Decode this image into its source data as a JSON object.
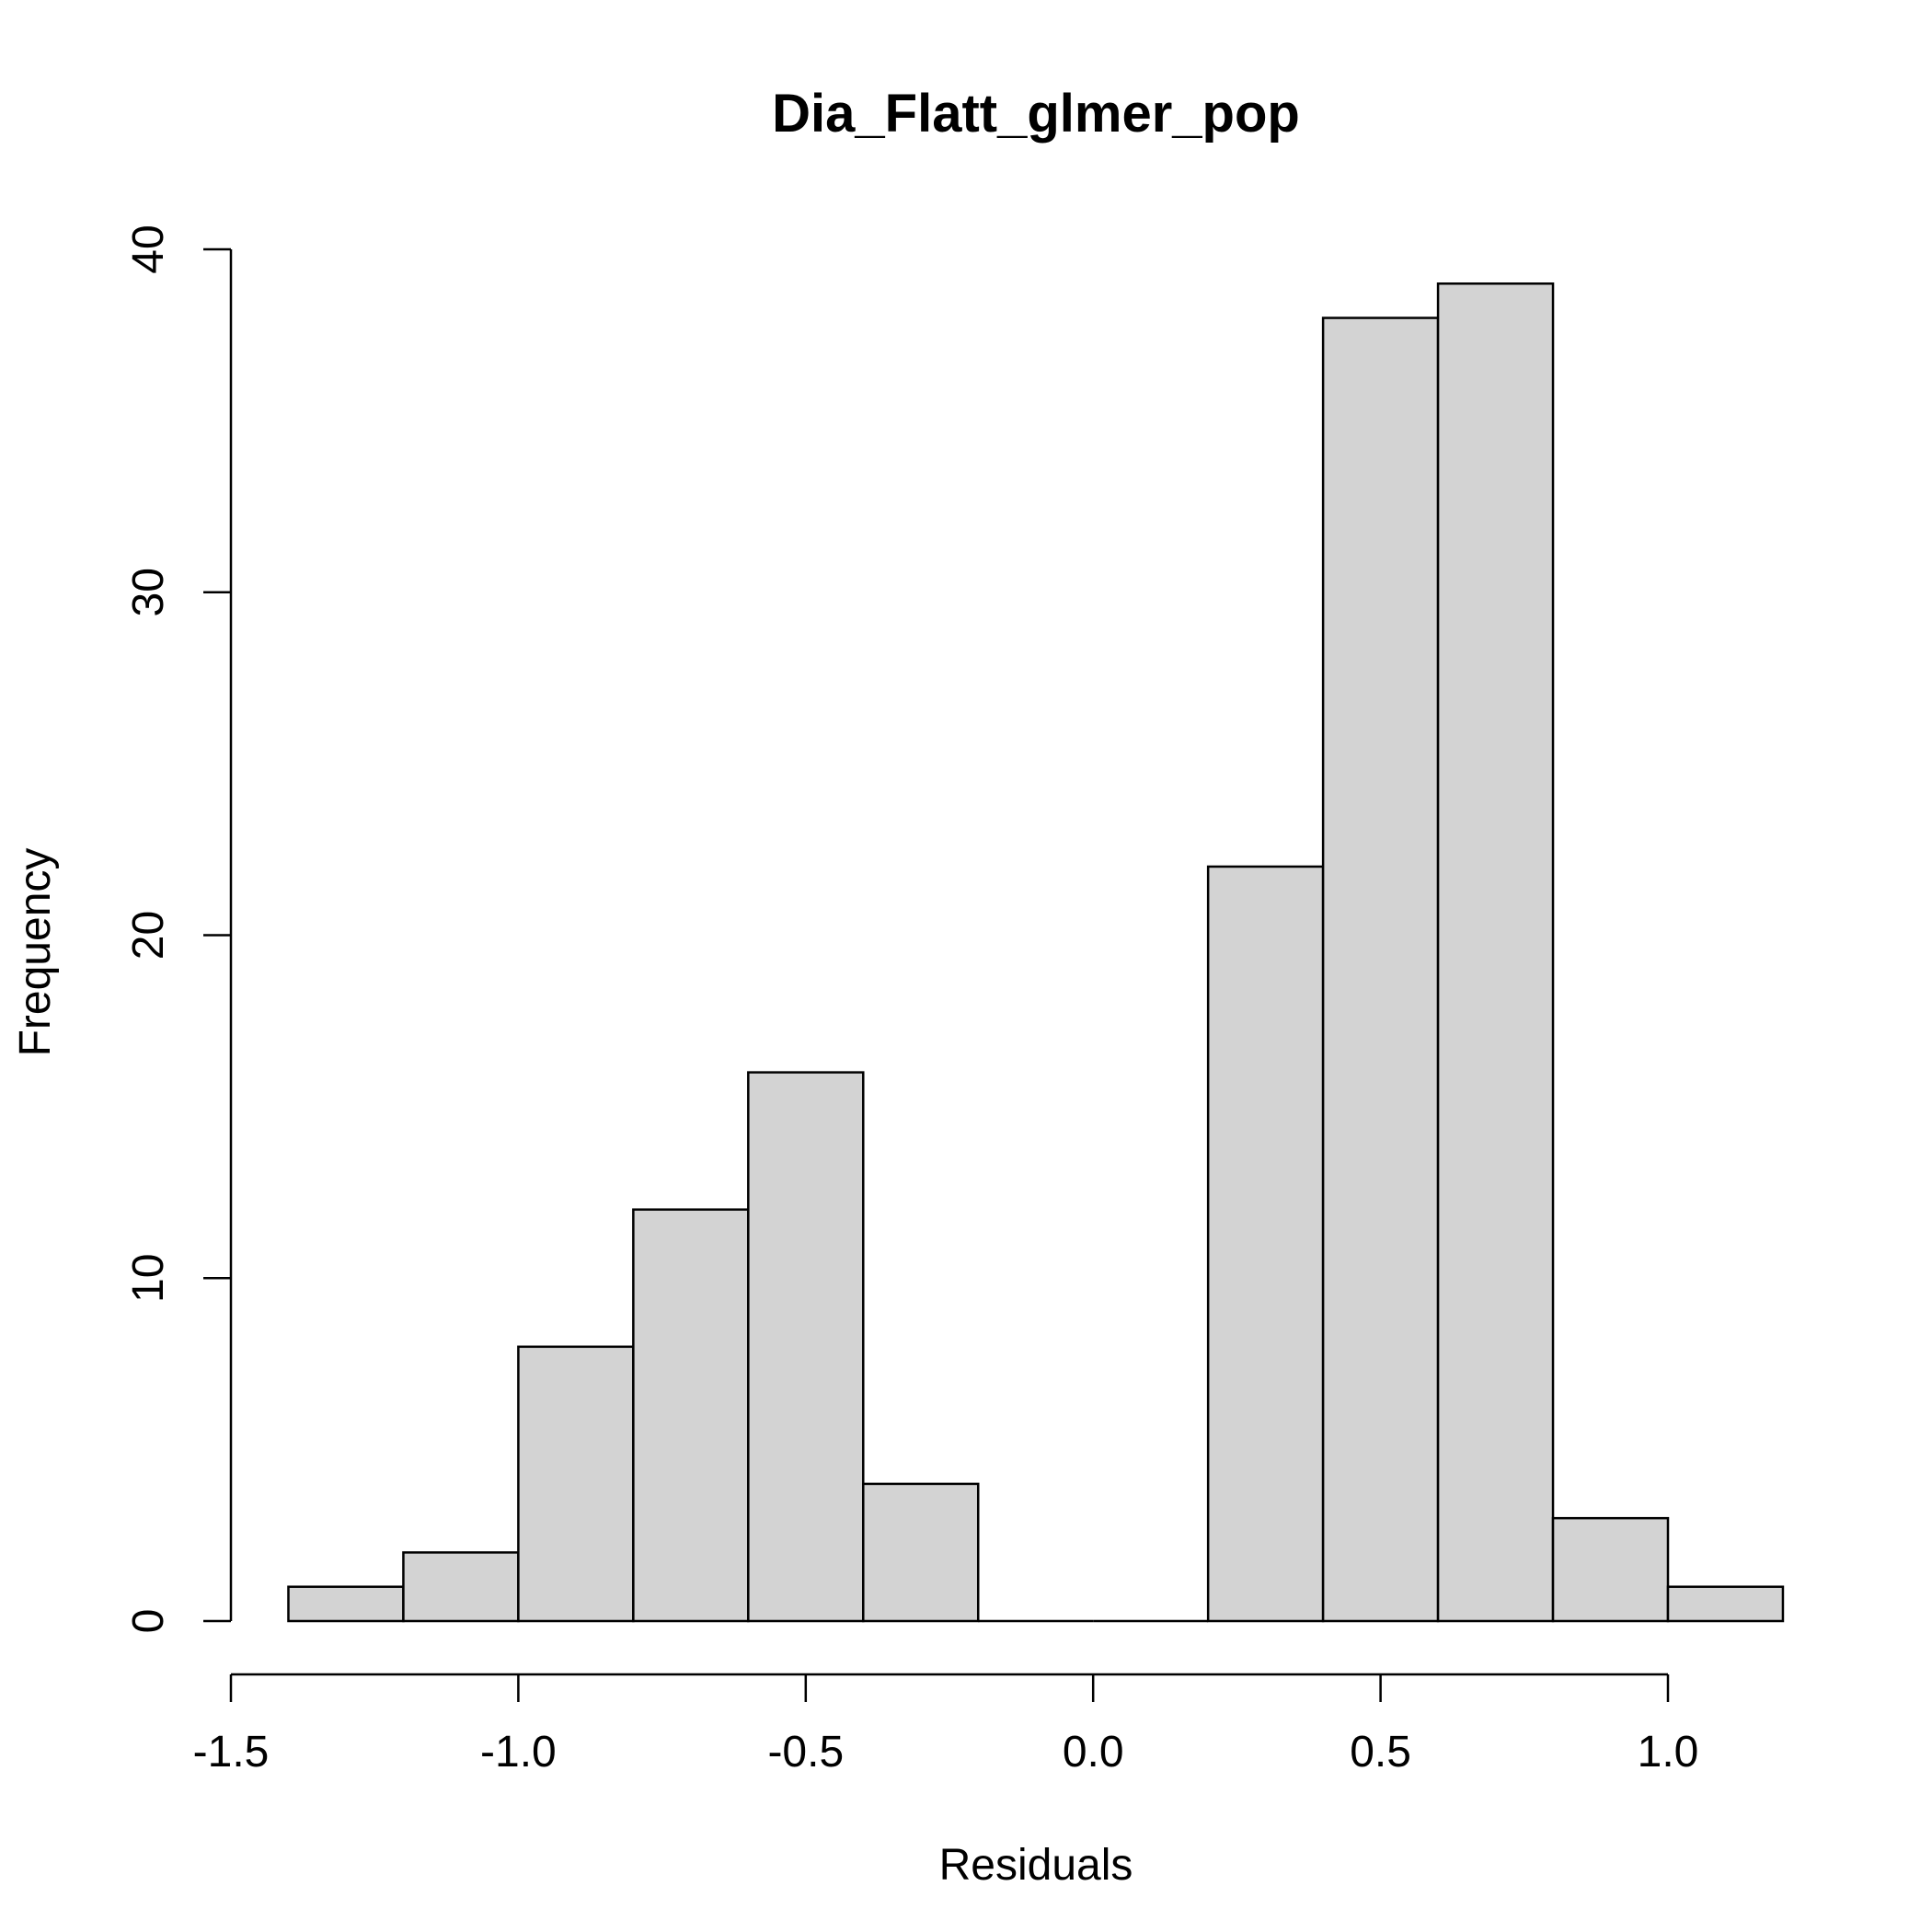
{
  "chart_data": {
    "type": "bar",
    "title": "Dia_Flatt_glmer_pop",
    "xlabel": "Residuals",
    "ylabel": "Frequency",
    "bins": [
      {
        "start": -1.4,
        "end": -1.2,
        "count": 1
      },
      {
        "start": -1.2,
        "end": -1.0,
        "count": 2
      },
      {
        "start": -1.0,
        "end": -0.8,
        "count": 8
      },
      {
        "start": -0.8,
        "end": -0.6,
        "count": 12
      },
      {
        "start": -0.6,
        "end": -0.4,
        "count": 16
      },
      {
        "start": -0.4,
        "end": -0.2,
        "count": 4
      },
      {
        "start": -0.2,
        "end": 0.0,
        "count": 0
      },
      {
        "start": 0.0,
        "end": 0.2,
        "count": 0
      },
      {
        "start": 0.2,
        "end": 0.4,
        "count": 22
      },
      {
        "start": 0.4,
        "end": 0.6,
        "count": 38
      },
      {
        "start": 0.6,
        "end": 0.8,
        "count": 39
      },
      {
        "start": 0.8,
        "end": 1.0,
        "count": 3
      },
      {
        "start": 1.0,
        "end": 1.2,
        "count": 1
      }
    ],
    "xticks": [
      {
        "value": -1.5,
        "label": "-1.5"
      },
      {
        "value": -1.0,
        "label": "-1.0"
      },
      {
        "value": -0.5,
        "label": "-0.5"
      },
      {
        "value": 0.0,
        "label": "0.0"
      },
      {
        "value": 0.5,
        "label": "0.5"
      },
      {
        "value": 1.0,
        "label": "1.0"
      }
    ],
    "yticks": [
      {
        "value": 0,
        "label": "0"
      },
      {
        "value": 10,
        "label": "10"
      },
      {
        "value": 20,
        "label": "20"
      },
      {
        "value": 30,
        "label": "30"
      },
      {
        "value": 40,
        "label": "40"
      }
    ],
    "xlim": [
      -1.5,
      1.0
    ],
    "ylim": [
      0,
      40
    ],
    "grid": false,
    "bar_fill": "#d3d3d3",
    "bar_stroke": "#000000"
  }
}
